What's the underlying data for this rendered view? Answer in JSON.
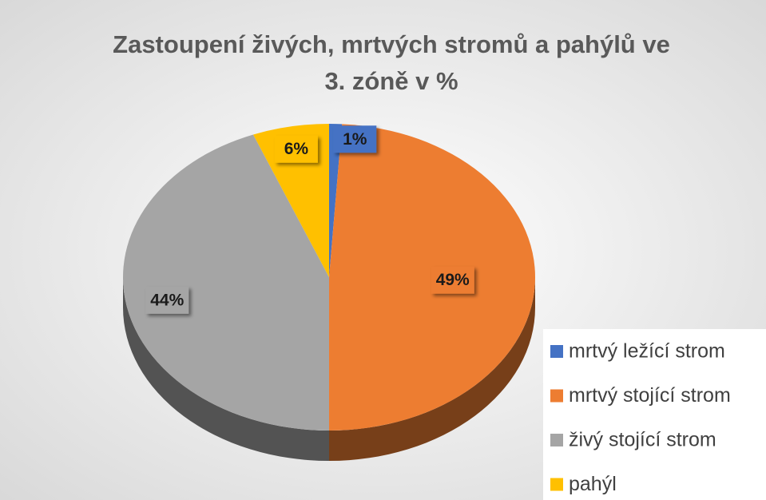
{
  "chart_data": {
    "type": "pie",
    "title": [
      "Zastoupení živých, mrtvých stromů a pahýlů ve",
      "3. zóně v %"
    ],
    "categories": [
      "mrtvý ležící strom",
      "mrtvý stojící strom",
      "živý stojící strom",
      "pahýl"
    ],
    "values": [
      1,
      49,
      44,
      6
    ],
    "value_labels": [
      "1%",
      "49%",
      "44%",
      "6%"
    ],
    "colors": [
      "#4472c4",
      "#ed7d31",
      "#a5a5a5",
      "#ffc000"
    ],
    "legend": "right"
  }
}
